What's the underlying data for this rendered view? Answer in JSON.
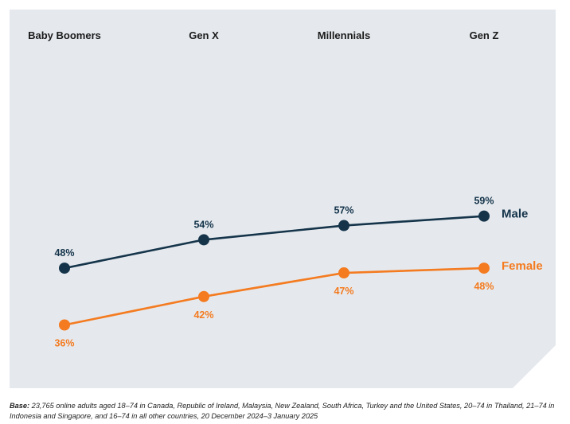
{
  "chart_data": {
    "type": "line",
    "categories": [
      "Baby Boomers",
      "Gen X",
      "Millennials",
      "Gen Z"
    ],
    "series": [
      {
        "name": "Male",
        "values": [
          48,
          54,
          57,
          59
        ],
        "labels": [
          "48%",
          "54%",
          "57%",
          "59%"
        ],
        "color": "#15344a"
      },
      {
        "name": "Female",
        "values": [
          36,
          42,
          47,
          48
        ],
        "labels": [
          "36%",
          "42%",
          "47%",
          "48%"
        ],
        "color": "#f47b20"
      }
    ],
    "unit": "%",
    "background_color": "#e5e9ee",
    "grid": false,
    "legend": "inline labels at right end of each line"
  },
  "footnote": {
    "label": "Base:",
    "text": "23,765 online adults aged 18–74 in Canada, Republic of Ireland, Malaysia, New Zealand, South Africa, Turkey and the United States, 20–74 in Thailand, 21–74 in Indonesia and Singapore, and 16–74 in all other countries, 20 December 2024–3 January 2025"
  }
}
